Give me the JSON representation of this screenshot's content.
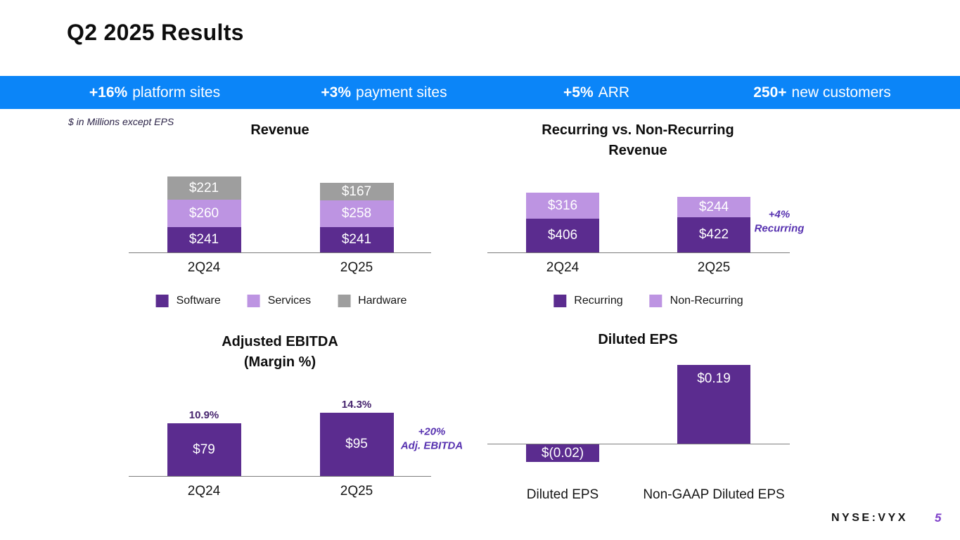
{
  "slide": {
    "title": "Q2 2025 Results",
    "note": "$ in Millions except EPS",
    "ticker": "NYSE:VYX",
    "page_number": "5"
  },
  "banner": {
    "background": "#0b85f8",
    "items": [
      {
        "value": "+16%",
        "label": "platform sites"
      },
      {
        "value": "+3%",
        "label": "payment sites"
      },
      {
        "value": "+5%",
        "label": "ARR"
      },
      {
        "value": "250+",
        "label": "new customers"
      }
    ]
  },
  "colors": {
    "dark_purple": "#5b2c8f",
    "light_purple": "#bd94e2",
    "gray": "#9e9e9e",
    "annotation_purple": "#5732b0",
    "banner_blue": "#0b85f8"
  },
  "chart_data": [
    {
      "id": "revenue",
      "type": "bar",
      "stacked": true,
      "title": "Revenue",
      "categories": [
        "2Q24",
        "2Q25"
      ],
      "series": [
        {
          "name": "Software",
          "color_key": "dark_purple",
          "values": [
            241,
            241
          ],
          "labels": [
            "$241",
            "$241"
          ]
        },
        {
          "name": "Services",
          "color_key": "light_purple",
          "values": [
            260,
            258
          ],
          "labels": [
            "$260",
            "$258"
          ]
        },
        {
          "name": "Hardware",
          "color_key": "gray",
          "values": [
            221,
            167
          ],
          "labels": [
            "$221",
            "$167"
          ]
        }
      ],
      "legend": [
        "Software",
        "Services",
        "Hardware"
      ],
      "units": "$ millions"
    },
    {
      "id": "recurring",
      "type": "bar",
      "stacked": true,
      "title": "Recurring vs. Non-Recurring\nRevenue",
      "categories": [
        "2Q24",
        "2Q25"
      ],
      "series": [
        {
          "name": "Recurring",
          "color_key": "dark_purple",
          "values": [
            406,
            422
          ],
          "labels": [
            "$406",
            "$422"
          ]
        },
        {
          "name": "Non-Recurring",
          "color_key": "light_purple",
          "values": [
            316,
            244
          ],
          "labels": [
            "$316",
            "$244"
          ]
        }
      ],
      "legend": [
        "Recurring",
        "Non-Recurring"
      ],
      "annotation": "+4%\nRecurring",
      "units": "$ millions"
    },
    {
      "id": "ebitda",
      "type": "bar",
      "stacked": false,
      "title": "Adjusted EBITDA\n(Margin %)",
      "categories": [
        "2Q24",
        "2Q25"
      ],
      "values": [
        79,
        95
      ],
      "bar_labels": [
        "$79",
        "$95"
      ],
      "top_labels": [
        "10.9%",
        "14.3%"
      ],
      "annotation": "+20%\nAdj. EBITDA",
      "units": "$ millions"
    },
    {
      "id": "eps",
      "type": "bar",
      "stacked": false,
      "title": "Diluted EPS",
      "categories": [
        "Diluted EPS",
        "Non-GAAP Diluted EPS"
      ],
      "values": [
        -0.02,
        0.19
      ],
      "bar_labels": [
        "$(0.02)",
        "$0.19"
      ],
      "units": "$ per share"
    }
  ]
}
